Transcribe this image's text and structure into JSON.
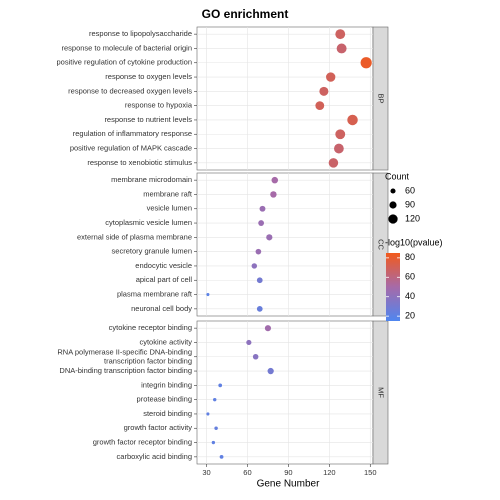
{
  "chart_data": {
    "type": "dot",
    "title": "GO enrichment",
    "x_label": "Gene Number",
    "xlim": [
      23,
      152
    ],
    "xticks": [
      30,
      60,
      90,
      120,
      150
    ],
    "grid": true,
    "panels": [
      {
        "name": "BP",
        "categories": [
          "response to lipopolysaccharide",
          "response to molecule of bacterial origin",
          "positive regulation of cytokine production",
          "response to oxygen levels",
          "response to decreased oxygen levels",
          "response to hypoxia",
          "response to nutrient levels",
          "regulation of inflammatory response",
          "positive regulation of MAPK cascade",
          "response to xenobiotic stimulus"
        ],
        "x": [
          128,
          129,
          147,
          121,
          116,
          113,
          137,
          128,
          127,
          123
        ],
        "color_values": [
          68,
          65,
          82,
          70,
          68,
          70,
          72,
          68,
          65,
          66
        ]
      },
      {
        "name": "CC",
        "categories": [
          "membrane microdomain",
          "membrane raft",
          "vesicle lumen",
          "cytoplasmic vesicle lumen",
          "external side of plasma membrane",
          "secretory granule lumen",
          "endocytic vesicle",
          "apical part of cell",
          "plasma membrane raft",
          "neuronal cell body"
        ],
        "x": [
          80,
          79,
          71,
          70,
          76,
          68,
          65,
          69,
          31,
          69
        ],
        "color_values": [
          50,
          50,
          45,
          45,
          45,
          45,
          40,
          30,
          20,
          25
        ]
      },
      {
        "name": "MF",
        "categories": [
          "cytokine receptor binding",
          "cytokine activity",
          "RNA polymerase II-specific DNA-binding\ntranscription factor binding",
          "DNA-binding transcription factor binding",
          "integrin binding",
          "protease binding",
          "steroid binding",
          "growth factor activity",
          "growth factor receptor binding",
          "carboxylic acid binding"
        ],
        "x": [
          75,
          61,
          66,
          77,
          40,
          36,
          31,
          37,
          35,
          41
        ],
        "color_values": [
          48,
          40,
          38,
          30,
          22,
          22,
          22,
          24,
          22,
          22
        ]
      }
    ],
    "size_legend": {
      "title": "Count",
      "values": [
        60,
        90,
        120
      ]
    },
    "color_legend": {
      "title": "-log10(pvalue)",
      "lim": [
        15,
        85
      ],
      "ticks": [
        20,
        40,
        60,
        80
      ],
      "colors": [
        "#4f86f0",
        "#a66aa8",
        "#f25a1c"
      ]
    }
  }
}
